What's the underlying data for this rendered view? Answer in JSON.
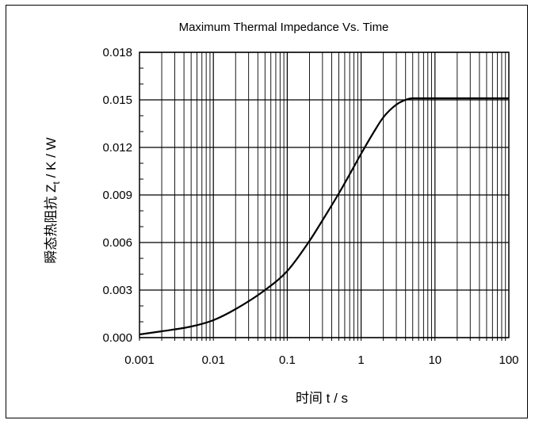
{
  "chart_data": {
    "type": "line",
    "title": "Maximum Thermal Impedance Vs. Time",
    "xlabel": "时间  t / s",
    "ylabel_prefix": "瞬态热阻抗  Z",
    "ylabel_sub": "t",
    "ylabel_suffix": " / K / W",
    "x_scale": "log",
    "xlim": [
      0.001,
      100
    ],
    "ylim": [
      0,
      0.018
    ],
    "x_ticks": [
      {
        "value": 0.001,
        "label": "0.001"
      },
      {
        "value": 0.01,
        "label": "0.01"
      },
      {
        "value": 0.1,
        "label": "0.1"
      },
      {
        "value": 1,
        "label": "1"
      },
      {
        "value": 10,
        "label": "10"
      },
      {
        "value": 100,
        "label": "100"
      }
    ],
    "y_ticks": [
      {
        "value": 0,
        "label": "0.000"
      },
      {
        "value": 0.003,
        "label": "0.003"
      },
      {
        "value": 0.006,
        "label": "0.006"
      },
      {
        "value": 0.009,
        "label": "0.009"
      },
      {
        "value": 0.012,
        "label": "0.012"
      },
      {
        "value": 0.015,
        "label": "0.015"
      },
      {
        "value": 0.018,
        "label": "0.018"
      }
    ],
    "grid": true,
    "line_color": "#000000",
    "series": [
      {
        "x": [
          0.001,
          0.002,
          0.005,
          0.01,
          0.02,
          0.05,
          0.1,
          0.2,
          0.3,
          0.5,
          0.7,
          1,
          1.5,
          2,
          3,
          4,
          5,
          6,
          8,
          10,
          20,
          50,
          100
        ],
        "y": [
          0.0002,
          0.0004,
          0.0007,
          0.0011,
          0.0018,
          0.003,
          0.0042,
          0.0061,
          0.0074,
          0.0091,
          0.0103,
          0.0116,
          0.013,
          0.0139,
          0.0147,
          0.015,
          0.0151,
          0.0151,
          0.0151,
          0.0151,
          0.0151,
          0.0151,
          0.0151
        ]
      }
    ]
  }
}
